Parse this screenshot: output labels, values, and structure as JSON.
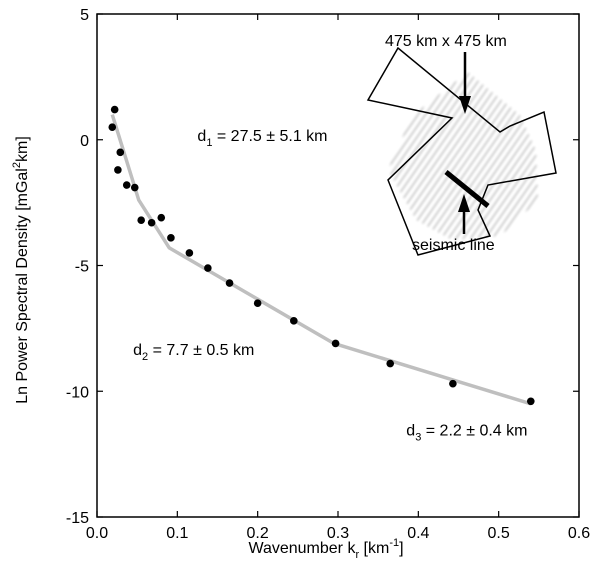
{
  "chart_data": {
    "type": "scatter",
    "xlabel": "Wavenumber k",
    "xlabel_sub": "r",
    "xlabel_unit_pre": " [km",
    "xlabel_unit_sup": "-1",
    "xlabel_unit_post": "]",
    "ylabel_pre": "Ln Power Spectral Density [mGal",
    "ylabel_sup": "2",
    "ylabel_post": "km]",
    "xlim": [
      0.0,
      0.6
    ],
    "ylim": [
      -15,
      5
    ],
    "x_ticks": [
      0.0,
      0.1,
      0.2,
      0.3,
      0.4,
      0.5,
      0.6
    ],
    "x_tick_labels": [
      "0.0",
      "0.1",
      "0.2",
      "0.3",
      "0.4",
      "0.5",
      "0.6"
    ],
    "y_ticks": [
      -15,
      -10,
      -5,
      0,
      5
    ],
    "y_tick_labels": [
      "-15",
      "-10",
      "-5",
      "0",
      "5"
    ],
    "grid": false,
    "series": [
      {
        "type": "scatter",
        "color": "#000000",
        "x": [
          0.019,
          0.022,
          0.026,
          0.029,
          0.037,
          0.047,
          0.055,
          0.068,
          0.08,
          0.092,
          0.115,
          0.138,
          0.165,
          0.2,
          0.245,
          0.297,
          0.365,
          0.443,
          0.54
        ],
        "y": [
          0.5,
          1.2,
          -1.2,
          -0.5,
          -1.8,
          -1.9,
          -3.2,
          -3.3,
          -3.1,
          -3.9,
          -4.5,
          -5.1,
          -5.7,
          -6.5,
          -7.2,
          -8.1,
          -8.9,
          -9.7,
          -10.4
        ]
      },
      {
        "type": "line",
        "color": "#bfbfbf",
        "x": [
          0.019,
          0.052,
          0.09,
          0.295,
          0.54
        ],
        "y": [
          1.0,
          -2.4,
          -4.3,
          -8.1,
          -10.5
        ]
      }
    ],
    "annotations": [
      {
        "label_main": "d",
        "label_sub": "1",
        "label_rest": " = 27.5 ± 5.1 km",
        "x": 0.125,
        "y": -0.05
      },
      {
        "label_main": "d",
        "label_sub": "2",
        "label_rest": " =  7.7 ± 0.5 km",
        "x": 0.045,
        "y": -8.55
      },
      {
        "label_main": "d",
        "label_sub": "3",
        "label_rest": " = 2.2 ± 0.4 km",
        "x": 0.385,
        "y": -11.75
      }
    ],
    "inset": {
      "area_label": "475 km x 475 km",
      "line_label": "seismic line"
    }
  }
}
